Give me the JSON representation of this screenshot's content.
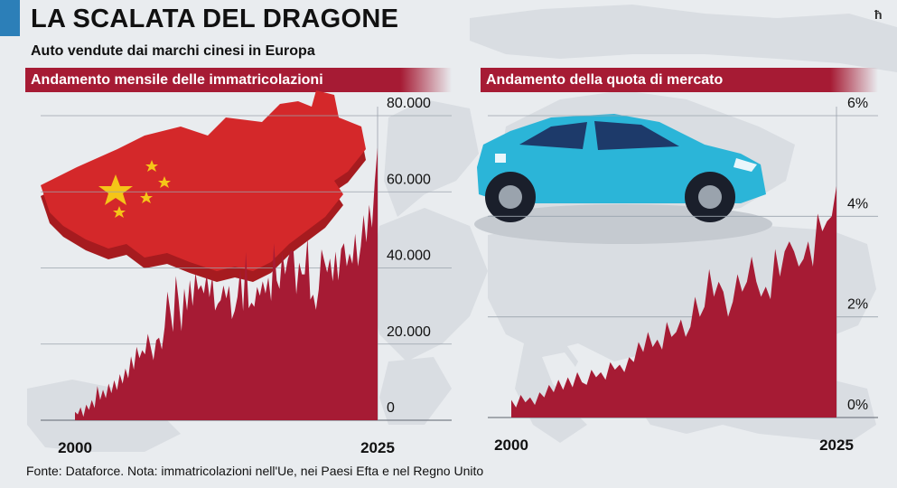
{
  "header": {
    "title": "LA SCALATA DEL DRAGONE",
    "subtitle": "Auto vendute dai marchi cinesi in Europa",
    "corner_mark": "ħ"
  },
  "footer": {
    "source": "Fonte: Dataforce. Nota: immatricolazioni nell'Ue, nei Paesi Efta e nel Regno Unito"
  },
  "colors": {
    "accent": "#2c7fb8",
    "bar": "#a61b34",
    "china_red": "#d4282a",
    "china_star": "#f5c518",
    "car_blue": "#2bb5d8",
    "map": "#d9dde2"
  },
  "icons": [
    "china-map-icon",
    "car-icon",
    "europe-map-background"
  ],
  "chart_data": [
    {
      "type": "area",
      "title": "Andamento mensile delle immatricolazioni",
      "x_labels": [
        "2000",
        "2025"
      ],
      "y_ticks": [
        "0",
        "20.000",
        "40.000",
        "60.000",
        "80.000"
      ],
      "ylim": [
        0,
        80000
      ],
      "grid": true,
      "values": [
        2200,
        1500,
        3400,
        900,
        4100,
        2700,
        5300,
        3200,
        9000,
        5300,
        8000,
        5800,
        9600,
        7100,
        10500,
        7900,
        12100,
        9600,
        13600,
        11000,
        16800,
        13300,
        19300,
        16300,
        18400,
        17300,
        22700,
        19300,
        15800,
        21000,
        21700,
        18600,
        24400,
        33800,
        28700,
        23200,
        37900,
        31500,
        23400,
        34600,
        28800,
        36800,
        30000,
        38700,
        34200,
        35500,
        33300,
        38300,
        32300,
        37900,
        28800,
        30600,
        31500,
        35400,
        32000,
        35300,
        26600,
        28700,
        32400,
        39700,
        28700,
        44200,
        29400,
        30900,
        29800,
        35000,
        32700,
        36500,
        33300,
        37500,
        31300,
        46500,
        36700,
        34500,
        44200,
        38300,
        42400,
        44600,
        44400,
        33100,
        41400,
        38300,
        38300,
        48000,
        31700,
        33000,
        29000,
        34300,
        44900,
        41800,
        38800,
        42500,
        36500,
        44300,
        36700,
        45000,
        46500,
        40400,
        43800,
        41100,
        49000,
        40400,
        45600,
        53900,
        46700,
        56600,
        50600,
        62700,
        71600
      ]
    },
    {
      "type": "area",
      "title": "Andamento della quota di mercato",
      "x_labels": [
        "2000",
        "2025"
      ],
      "y_ticks": [
        "0%",
        "2%",
        "4%",
        "6%"
      ],
      "ylim": [
        0,
        6
      ],
      "grid": true,
      "values": [
        0.35,
        0.2,
        0.45,
        0.3,
        0.4,
        0.25,
        0.5,
        0.4,
        0.65,
        0.5,
        0.75,
        0.55,
        0.8,
        0.6,
        0.9,
        0.7,
        0.65,
        0.95,
        0.8,
        0.9,
        0.75,
        1.1,
        0.95,
        1.05,
        0.9,
        1.2,
        1.1,
        1.5,
        1.3,
        1.7,
        1.4,
        1.55,
        1.35,
        1.9,
        1.6,
        1.7,
        1.95,
        1.6,
        1.8,
        2.4,
        2.0,
        2.2,
        2.95,
        2.4,
        2.7,
        2.5,
        2.0,
        2.3,
        2.85,
        2.5,
        2.7,
        3.2,
        2.7,
        2.4,
        2.6,
        2.35,
        3.35,
        2.8,
        3.3,
        3.5,
        3.3,
        3.0,
        3.15,
        3.5,
        3.0,
        4.05,
        3.7,
        3.9,
        4.0,
        4.6
      ]
    }
  ]
}
